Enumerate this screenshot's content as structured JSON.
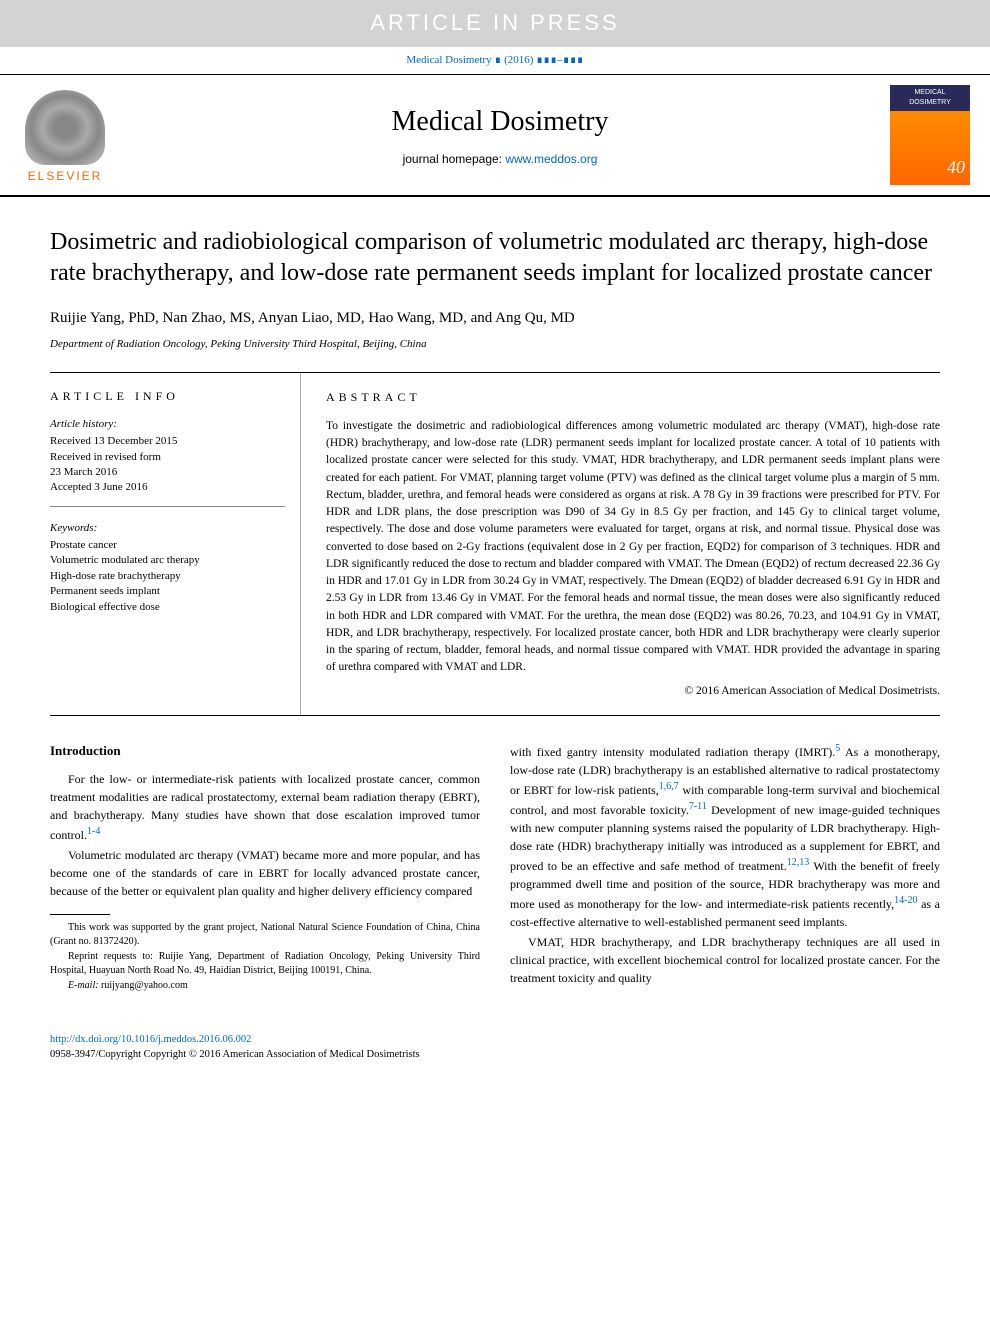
{
  "banner": {
    "article_in_press": "ARTICLE IN PRESS",
    "citation_pre": "Medical Dosimetry",
    "citation_post": " ∎ (2016) ∎∎∎–∎∎∎"
  },
  "journal_header": {
    "elsevier": "ELSEVIER",
    "journal_title": "Medical Dosimetry",
    "homepage_label": "journal homepage: ",
    "homepage_url": "www.meddos.org",
    "cover_label": "MEDICAL DOSIMETRY",
    "cover_badge": "40"
  },
  "article": {
    "title": "Dosimetric and radiobiological comparison of volumetric modulated arc therapy, high-dose rate brachytherapy, and low-dose rate permanent seeds implant for localized prostate cancer",
    "authors": "Ruijie Yang, PhD, Nan Zhao, MS, Anyan Liao, MD, Hao Wang, MD, and Ang Qu, MD",
    "affiliation": "Department of Radiation Oncology, Peking University Third Hospital, Beijing, China"
  },
  "article_info": {
    "heading": "ARTICLE INFO",
    "history_label": "Article history:",
    "received": "Received 13 December 2015",
    "revised": "Received in revised form",
    "revised_date": "23 March 2016",
    "accepted": "Accepted 3 June 2016",
    "keywords_label": "Keywords:",
    "keywords": [
      "Prostate cancer",
      "Volumetric modulated arc therapy",
      "High-dose rate brachytherapy",
      "Permanent seeds implant",
      "Biological effective dose"
    ]
  },
  "abstract": {
    "heading": "ABSTRACT",
    "text": "To investigate the dosimetric and radiobiological differences among volumetric modulated arc therapy (VMAT), high-dose rate (HDR) brachytherapy, and low-dose rate (LDR) permanent seeds implant for localized prostate cancer. A total of 10 patients with localized prostate cancer were selected for this study. VMAT, HDR brachytherapy, and LDR permanent seeds implant plans were created for each patient. For VMAT, planning target volume (PTV) was defined as the clinical target volume plus a margin of 5 mm. Rectum, bladder, urethra, and femoral heads were considered as organs at risk. A 78 Gy in 39 fractions were prescribed for PTV. For HDR and LDR plans, the dose prescription was D90 of 34 Gy in 8.5 Gy per fraction, and 145 Gy to clinical target volume, respectively. The dose and dose volume parameters were evaluated for target, organs at risk, and normal tissue. Physical dose was converted to dose based on 2-Gy fractions (equivalent dose in 2 Gy per fraction, EQD2) for comparison of 3 techniques. HDR and LDR significantly reduced the dose to rectum and bladder compared with VMAT. The Dmean (EQD2) of rectum decreased 22.36 Gy in HDR and 17.01 Gy in LDR from 30.24 Gy in VMAT, respectively. The Dmean (EQD2) of bladder decreased 6.91 Gy in HDR and 2.53 Gy in LDR from 13.46 Gy in VMAT. For the femoral heads and normal tissue, the mean doses were also significantly reduced in both HDR and LDR compared with VMAT. For the urethra, the mean dose (EQD2) was 80.26, 70.23, and 104.91 Gy in VMAT, HDR, and LDR brachytherapy, respectively. For localized prostate cancer, both HDR and LDR brachytherapy were clearly superior in the sparing of rectum, bladder, femoral heads, and normal tissue compared with VMAT. HDR provided the advantage in sparing of urethra compared with VMAT and LDR.",
    "copyright": "© 2016 American Association of Medical Dosimetrists."
  },
  "introduction": {
    "heading": "Introduction",
    "p1_pre": "For the low- or intermediate-risk patients with localized prostate cancer, common treatment modalities are radical prostatectomy, external beam radiation therapy (EBRT), and brachytherapy. Many studies have shown that dose escalation improved tumor control.",
    "p1_ref": "1-4",
    "p2": "Volumetric modulated arc therapy (VMAT) became more and more popular, and has become one of the standards of care in EBRT for locally advanced prostate cancer, because of the better or equivalent plan quality and higher delivery efficiency compared",
    "p2_cont_a": "with fixed gantry intensity modulated radiation therapy (IMRT).",
    "p2_ref_a": "5",
    "p2_cont_b": " As a monotherapy, low-dose rate (LDR) brachytherapy is an established alternative to radical prostatectomy or EBRT for low-risk patients,",
    "p2_ref_b": "1,6,7",
    "p2_cont_c": " with comparable long-term survival and biochemical control, and most favorable toxicity.",
    "p2_ref_c": "7-11",
    "p2_cont_d": " Development of new image-guided techniques with new computer planning systems raised the popularity of LDR brachytherapy. High-dose rate (HDR) brachytherapy initially was introduced as a supplement for EBRT, and proved to be an effective and safe method of treatment.",
    "p2_ref_d": "12,13",
    "p2_cont_e": " With the benefit of freely programmed dwell time and position of the source, HDR brachytherapy was more and more used as monotherapy for the low- and intermediate-risk patients recently,",
    "p2_ref_e": "14-20",
    "p2_cont_f": " as a cost-effective alternative to well-established permanent seed implants.",
    "p3": "VMAT, HDR brachytherapy, and LDR brachytherapy techniques are all used in clinical practice, with excellent biochemical control for localized prostate cancer. For the treatment toxicity and quality"
  },
  "footnotes": {
    "funding": "This work was supported by the grant project, National Natural Science Foundation of China, China (Grant no. 81372420).",
    "reprint": "Reprint requests to: Ruijie Yang, Department of Radiation Oncology, Peking University Third Hospital, Huayuan North Road No. 49, Haidian District, Beijing 100191, China.",
    "email_label": "E-mail:",
    "email": " ruijyang@yahoo.com"
  },
  "footer": {
    "doi": "http://dx.doi.org/10.1016/j.meddos.2016.06.002",
    "issn_copyright": "0958-3947/Copyright Copyright © 2016 American Association of Medical Dosimetrists"
  },
  "colors": {
    "link": "#0066cc",
    "elsevier_orange": "#ff6600",
    "banner_bg": "#d3d3d3",
    "cover_top": "#2a2a5a",
    "cover_body": "#ff8c00"
  }
}
